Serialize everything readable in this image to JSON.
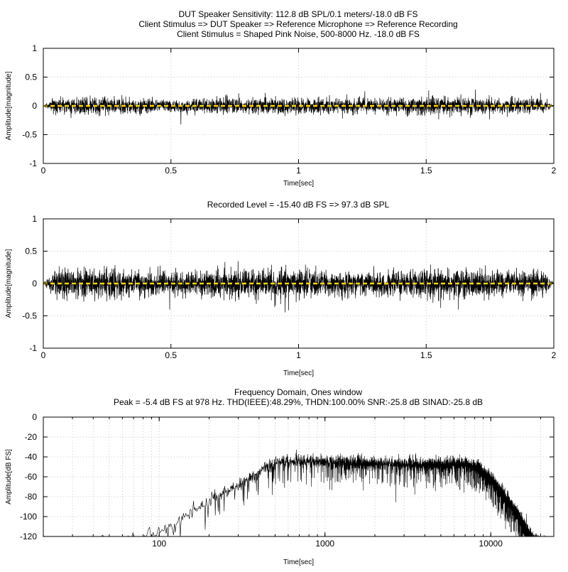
{
  "chart_data": [
    {
      "type": "line",
      "title_lines": [
        "DUT Speaker Sensitivity: 112.8 dB SPL/0.1 meters/-18.0 dB FS",
        "Client Stimulus => DUT Speaker => Reference Microphone => Reference Recording",
        "Client Stimulus = Shaped Pink Noise, 500-8000 Hz. -18.0 dB FS"
      ],
      "xlabel": "Time[sec]",
      "ylabel": "Amplitude[magnitude]",
      "xlim": [
        0,
        2
      ],
      "ylim": [
        -1,
        1
      ],
      "xticks": [
        0,
        0.5,
        1,
        1.5,
        2
      ],
      "xtick_labels": [
        "0",
        "0.5",
        "1",
        "1.5",
        "2"
      ],
      "yticks": [
        -1,
        -0.5,
        0,
        0.5,
        1
      ],
      "ytick_labels": [
        "-1",
        "-0.5",
        "0",
        "0.5",
        "1"
      ],
      "grid": true,
      "series": [
        {
          "name": "waveform",
          "kind": "noise",
          "duration": 2,
          "rms": 0.065,
          "fade": 0.04,
          "color": "#000000",
          "seed": 11
        },
        {
          "name": "zero-line",
          "kind": "hline",
          "value": 0,
          "color": "#ffd700",
          "dashed": true
        }
      ]
    },
    {
      "type": "line",
      "title_lines": [
        "Recorded Level = -15.40 dB FS  => 97.3 dB SPL"
      ],
      "xlabel": "Time[sec]",
      "ylabel": "Amplitude[magnitude]",
      "xlim": [
        0,
        2
      ],
      "ylim": [
        -1,
        1
      ],
      "xticks": [
        0,
        0.5,
        1,
        1.5,
        2
      ],
      "xtick_labels": [
        "0",
        "0.5",
        "1",
        "1.5",
        "2"
      ],
      "yticks": [
        -1,
        -0.5,
        0,
        0.5,
        1
      ],
      "ytick_labels": [
        "-1",
        "-0.5",
        "0",
        "0.5",
        "1"
      ],
      "grid": true,
      "series": [
        {
          "name": "waveform",
          "kind": "noise",
          "duration": 2,
          "rms": 0.1,
          "fade": 0.04,
          "color": "#000000",
          "seed": 23
        },
        {
          "name": "zero-line",
          "kind": "hline",
          "value": 0,
          "color": "#ffd700",
          "dashed": true
        }
      ]
    },
    {
      "type": "line",
      "title_lines": [
        "Frequency Domain, Ones window",
        "Peak = -5.4 dB FS at 978 Hz. THD(IEEE):48.29%, THDN:100.00% SNR:-25.8 dB SINAD:-25.8 dB"
      ],
      "xlabel": "Time[sec]",
      "ylabel": "Amplitude[dB FS]",
      "xscale": "log",
      "xlim": [
        20,
        24000
      ],
      "ylim": [
        -120,
        0
      ],
      "xticks": [
        100,
        1000,
        10000
      ],
      "xtick_labels": [
        "100",
        "1000",
        "10000"
      ],
      "yticks": [
        -120,
        -100,
        -80,
        -60,
        -40,
        -20,
        0
      ],
      "ytick_labels": [
        "-120",
        "-100",
        "-80",
        "-60",
        "-40",
        "-20",
        "0"
      ],
      "grid": true,
      "series": [
        {
          "name": "spectrum",
          "kind": "spectrum",
          "color": "#000000",
          "seed": 7,
          "envelope_hz_db": [
            [
              20,
              -130
            ],
            [
              30,
              -125
            ],
            [
              80,
              -122
            ],
            [
              100,
              -115
            ],
            [
              150,
              -97
            ],
            [
              200,
              -85
            ],
            [
              300,
              -68
            ],
            [
              400,
              -55
            ],
            [
              500,
              -47
            ],
            [
              600,
              -44
            ],
            [
              800,
              -44
            ],
            [
              1000,
              -45
            ],
            [
              2000,
              -47
            ],
            [
              4000,
              -48
            ],
            [
              7000,
              -48
            ],
            [
              8500,
              -52
            ],
            [
              10000,
              -62
            ],
            [
              12000,
              -80
            ],
            [
              15000,
              -102
            ],
            [
              18000,
              -125
            ],
            [
              24000,
              -130
            ]
          ]
        }
      ]
    }
  ]
}
